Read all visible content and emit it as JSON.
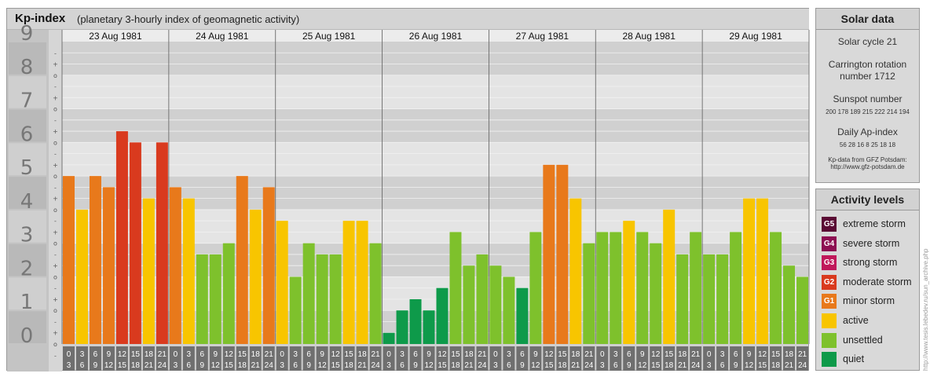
{
  "header": {
    "title": "Kp-index",
    "subtitle": "(planetary 3-hourly index of geomagnetic activity)"
  },
  "chart_data": {
    "type": "bar",
    "title": "Kp-index",
    "subtitle": "(planetary 3-hourly index of geomagnetic activity)",
    "ylim": [
      0,
      9
    ],
    "y_tick_labels": [
      "0",
      "1",
      "2",
      "3",
      "4",
      "5",
      "6",
      "7",
      "8",
      "9"
    ],
    "thirds_symbols": [
      "+",
      "o",
      "-"
    ],
    "days": [
      "23 Aug 1981",
      "24 Aug 1981",
      "25 Aug 1981",
      "26 Aug 1981",
      "27 Aug 1981",
      "28 Aug 1981",
      "29 Aug 1981"
    ],
    "hour_labels_top": [
      "0",
      "3",
      "6",
      "9",
      "12",
      "15",
      "18",
      "21"
    ],
    "hour_labels_bottom": [
      "3",
      "6",
      "9",
      "12",
      "15",
      "18",
      "21",
      "24"
    ],
    "values": [
      [
        5.0,
        4.0,
        5.0,
        4.667,
        6.333,
        6.0,
        4.333,
        6.0
      ],
      [
        4.667,
        4.333,
        2.667,
        2.667,
        3.0,
        5.0,
        4.0,
        4.667
      ],
      [
        3.667,
        2.0,
        3.0,
        2.667,
        2.667,
        3.667,
        3.667,
        3.0
      ],
      [
        0.333,
        1.0,
        1.333,
        1.0,
        1.667,
        3.333,
        2.333,
        2.667
      ],
      [
        2.333,
        2.0,
        1.667,
        3.333,
        5.333,
        5.333,
        4.333,
        3.0
      ],
      [
        3.333,
        3.333,
        3.667,
        3.333,
        3.0,
        4.0,
        2.667,
        3.333
      ],
      [
        2.667,
        2.667,
        3.333,
        4.333,
        4.333,
        3.333,
        2.333,
        2.0
      ]
    ],
    "grid": true,
    "legend": "right"
  },
  "colors": {
    "quiet": "#0e9a4a",
    "unsettled": "#7ec12c",
    "active": "#f8c500",
    "G1": "#e8791b",
    "G2": "#d93a1e",
    "G3": "#c0185a",
    "G4": "#8d0f52",
    "G5": "#5a0a34",
    "bar_outline": "#ffffff"
  },
  "solar": {
    "heading": "Solar data",
    "cycle": "Solar cycle 21",
    "carrington_line1": "Carrington rotation",
    "carrington_line2": "number 1712",
    "sunspot_heading": "Sunspot number",
    "sunspot_values": "200 178 189 215 222 214 194",
    "ap_heading": "Daily Ap-index",
    "ap_values": "56 28 16 8 25 18 18",
    "source_line1": "Kp-data from GFZ Potsdam:",
    "source_line2": "http://www.gfz-potsdam.de"
  },
  "activity": {
    "heading": "Activity levels",
    "items": [
      {
        "badge": "G5",
        "label": "extreme storm",
        "color": "#5a0a34"
      },
      {
        "badge": "G4",
        "label": "severe storm",
        "color": "#8d0f52"
      },
      {
        "badge": "G3",
        "label": "strong storm",
        "color": "#c0185a"
      },
      {
        "badge": "G2",
        "label": "moderate storm",
        "color": "#d93a1e"
      },
      {
        "badge": "G1",
        "label": "minor storm",
        "color": "#e8791b"
      },
      {
        "badge": "",
        "label": "active",
        "color": "#f8c500"
      },
      {
        "badge": "",
        "label": "unsettled",
        "color": "#7ec12c"
      },
      {
        "badge": "",
        "label": "quiet",
        "color": "#0e9a4a"
      }
    ]
  },
  "watermark": "http://www.tesis.lebedev.ru/sun_archive.php"
}
